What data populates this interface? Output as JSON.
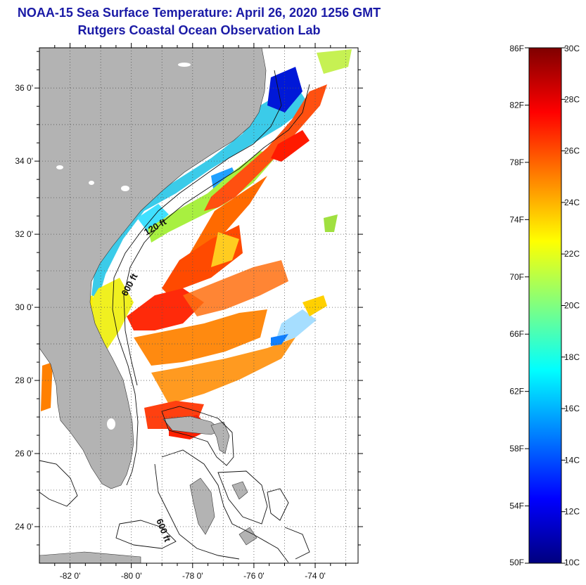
{
  "header": {
    "title": "NOAA-15 Sea Surface Temperature:  April 26, 2020 1256 GMT",
    "subtitle": "Rutgers Coastal Ocean Observation Lab"
  },
  "map": {
    "lat_labels": [
      {
        "value": 36,
        "label": "36 0'"
      },
      {
        "value": 34,
        "label": "34 0'"
      },
      {
        "value": 32,
        "label": "32 0'"
      },
      {
        "value": 30,
        "label": "30 0'"
      },
      {
        "value": 28,
        "label": "28 0'"
      },
      {
        "value": 26,
        "label": "26 0'"
      },
      {
        "value": 24,
        "label": "24 0'"
      }
    ],
    "lon_labels": [
      {
        "value": -82,
        "label": "-82 0'"
      },
      {
        "value": -80,
        "label": "-80 0'"
      },
      {
        "value": -78,
        "label": "-78 0'"
      },
      {
        "value": -76,
        "label": "-76 0'"
      },
      {
        "value": -74,
        "label": "-74 0'"
      }
    ],
    "lat_range": [
      23,
      37.1
    ],
    "lon_range": [
      -83,
      -72.6
    ],
    "contour_labels": [
      "120 ft",
      "600 ft",
      "600 ft"
    ],
    "land_color": "#b3b3b3",
    "grid": "dotted"
  },
  "colorbar": {
    "f_labels": [
      "86F",
      "82F",
      "78F",
      "74F",
      "70F",
      "66F",
      "62F",
      "58F",
      "54F",
      "50F"
    ],
    "c_labels": [
      "30C",
      "28C",
      "26C",
      "24C",
      "22C",
      "20C",
      "18C",
      "16C",
      "14C",
      "12C",
      "10C"
    ],
    "range_c": [
      10,
      30
    ],
    "palette": [
      "#00007f",
      "#0000ff",
      "#0080ff",
      "#00ffff",
      "#80ff80",
      "#ffff00",
      "#ff8000",
      "#ff0000",
      "#7f0000"
    ]
  }
}
